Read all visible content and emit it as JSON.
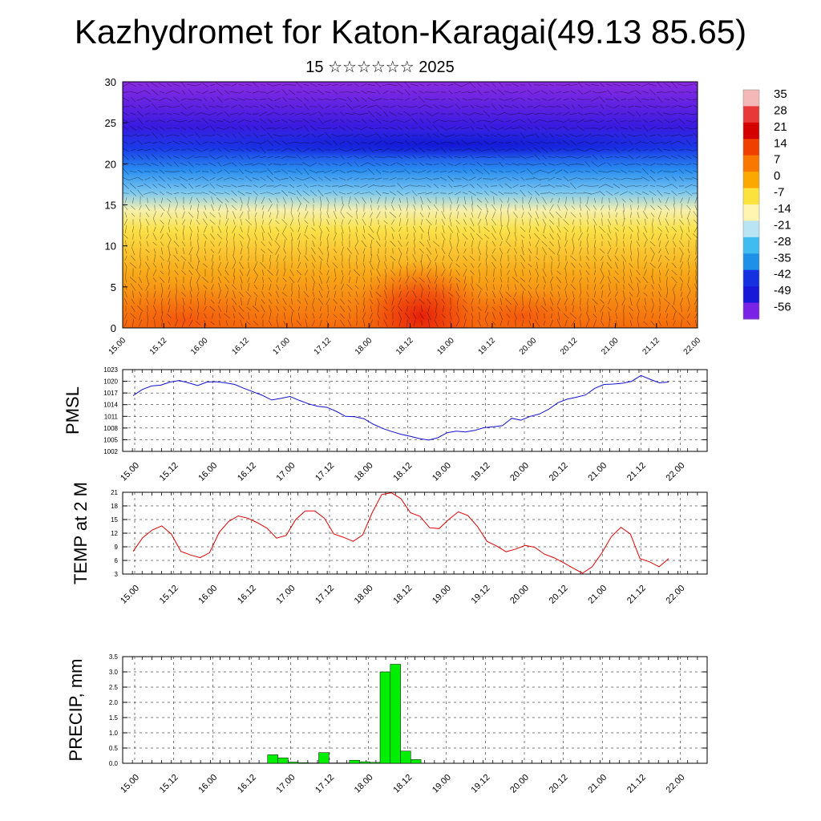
{
  "title": "Kazhydromet for Katon-Karagai(49.13 85.65)",
  "subtitle": "15 ☆☆☆☆☆☆ 2025",
  "colorbar": {
    "labels": [
      "35",
      "28",
      "21",
      "14",
      "7",
      "0",
      "-7",
      "-14",
      "-21",
      "-28",
      "-35",
      "-42",
      "-49",
      "-56"
    ],
    "colors": [
      "#f4b8b8",
      "#e83838",
      "#d40000",
      "#f04000",
      "#f87800",
      "#fba800",
      "#fce23c",
      "#fff4b0",
      "#b8e4f4",
      "#40bcf0",
      "#1e90e8",
      "#1430e0",
      "#1818d8",
      "#7a22e6"
    ]
  },
  "chart_data": [
    {
      "type": "heatmap",
      "name": "upper-air temperature cross-section with wind barbs",
      "ylim": [
        0,
        30
      ],
      "yticks": [
        "0",
        "5",
        "10",
        "15",
        "20",
        "25",
        "30"
      ],
      "xticks": [
        "15.00",
        "15.12",
        "16.00",
        "16.12",
        "17.00",
        "17.12",
        "18.00",
        "18.12",
        "19.00",
        "19.12",
        "20.00",
        "20.12",
        "21.00",
        "21.12",
        "22.00"
      ],
      "colorbar_range": [
        -56,
        35
      ]
    },
    {
      "type": "line",
      "ylabel": "PMSL",
      "ylim": [
        1002,
        1023
      ],
      "yticks": [
        "1023",
        "1020",
        "1017",
        "1014",
        "1011",
        "1008",
        "1005",
        "1002"
      ],
      "xticks": [
        "15.00",
        "15.12",
        "16.00",
        "16.12",
        "17.00",
        "17.12",
        "18.00",
        "18.12",
        "19.00",
        "19.12",
        "20.00",
        "20.12",
        "21.00",
        "21.12",
        "22.00"
      ],
      "color": "#1010d0",
      "values": [
        1016.3,
        1017.9,
        1018.8,
        1019.0,
        1019.8,
        1020.2,
        1019.6,
        1018.9,
        1019.8,
        1019.9,
        1019.6,
        1019.2,
        1018.2,
        1017.3,
        1016.4,
        1015.2,
        1015.6,
        1016.1,
        1015.1,
        1014.2,
        1013.6,
        1013.3,
        1012.3,
        1011.0,
        1010.9,
        1010.4,
        1009.0,
        1007.9,
        1007.1,
        1006.4,
        1005.9,
        1005.3,
        1004.9,
        1005.5,
        1006.8,
        1007.2,
        1007.0,
        1007.4,
        1008.1,
        1008.3,
        1008.6,
        1010.5,
        1010.0,
        1011.0,
        1011.6,
        1012.8,
        1014.5,
        1015.4,
        1015.9,
        1016.5,
        1018.2,
        1019.2,
        1019.3,
        1019.5,
        1020.0,
        1021.5,
        1020.5,
        1019.6,
        1019.8
      ]
    },
    {
      "type": "line",
      "ylabel": "TEMP at 2 M",
      "ylim": [
        3,
        21
      ],
      "yticks": [
        "21",
        "18",
        "15",
        "12",
        "9",
        "6",
        "3"
      ],
      "xticks": [
        "15.00",
        "15.12",
        "16.00",
        "16.12",
        "17.00",
        "17.12",
        "18.00",
        "18.12",
        "19.00",
        "19.12",
        "20.00",
        "20.12",
        "21.00",
        "21.12",
        "22.00"
      ],
      "color": "#e00000",
      "values": [
        8.0,
        11.0,
        12.7,
        13.6,
        11.8,
        8.0,
        7.2,
        6.6,
        7.7,
        12.2,
        14.6,
        15.8,
        15.3,
        14.3,
        13.1,
        10.9,
        11.5,
        15.0,
        16.9,
        16.9,
        15.3,
        11.8,
        11.1,
        10.2,
        11.6,
        16.5,
        20.5,
        20.9,
        19.6,
        16.5,
        15.7,
        13.2,
        13.0,
        15.0,
        16.7,
        15.9,
        13.5,
        10.2,
        9.2,
        7.9,
        8.5,
        9.3,
        8.9,
        7.4,
        6.6,
        5.5,
        4.3,
        3.2,
        4.6,
        7.6,
        11.2,
        13.3,
        11.8,
        6.4,
        5.7,
        4.6,
        6.4
      ]
    },
    {
      "type": "bar",
      "ylabel": "PRECIP, mm",
      "ylim": [
        0,
        3.5
      ],
      "yticks": [
        "3.5",
        "3.0",
        "2.5",
        "2.0",
        "1.5",
        "1.0",
        "0.5",
        "0.0"
      ],
      "xticks": [
        "15.00",
        "15.12",
        "16.00",
        "16.12",
        "17.00",
        "17.12",
        "18.00",
        "18.12",
        "19.00",
        "19.12",
        "20.00",
        "20.12",
        "21.00",
        "21.12",
        "22.00"
      ],
      "color": "#00ee00",
      "bars": [
        {
          "t": 40.5,
          "value": 0.28
        },
        {
          "t": 43.5,
          "value": 0.18
        },
        {
          "t": 46.5,
          "value": 0.04
        },
        {
          "t": 49.5,
          "value": 0.02
        },
        {
          "t": 52.5,
          "value": 0.01
        },
        {
          "t": 55.5,
          "value": 0.35
        },
        {
          "t": 58.5,
          "value": 0.01
        },
        {
          "t": 61.5,
          "value": 0.01
        },
        {
          "t": 64.5,
          "value": 0.1
        },
        {
          "t": 67.5,
          "value": 0.05
        },
        {
          "t": 70.5,
          "value": 0.03
        },
        {
          "t": 73.5,
          "value": 3.0
        },
        {
          "t": 76.5,
          "value": 3.25
        },
        {
          "t": 79.5,
          "value": 0.4
        },
        {
          "t": 82.5,
          "value": 0.12
        }
      ]
    }
  ]
}
